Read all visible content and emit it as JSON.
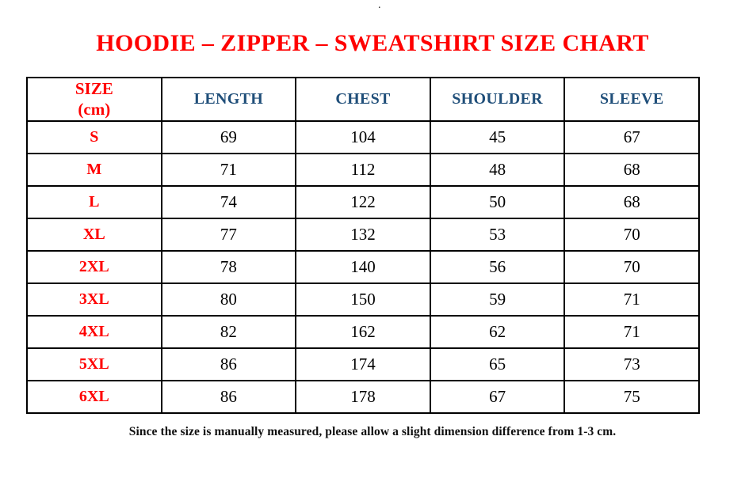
{
  "artifact": {
    "dot": "."
  },
  "colors": {
    "title_red": "#FF0000",
    "header_blue": "#1F4E79",
    "body_text": "#000000",
    "border": "#000000",
    "background": "#FFFFFF"
  },
  "header": {
    "size_line1": "SIZE",
    "size_line2": "(cm)",
    "columns": [
      "LENGTH",
      "CHEST",
      "SHOULDER",
      "SLEEVE"
    ]
  },
  "chart_data": {
    "type": "table",
    "title": "HOODIE – ZIPPER – SWEATSHIRT SIZE CHART",
    "columns": [
      "SIZE (cm)",
      "LENGTH",
      "CHEST",
      "SHOULDER",
      "SLEEVE"
    ],
    "rows": [
      {
        "size": "S",
        "length": 69,
        "chest": 104,
        "shoulder": 45,
        "sleeve": 67
      },
      {
        "size": "M",
        "length": 71,
        "chest": 112,
        "shoulder": 48,
        "sleeve": 68
      },
      {
        "size": "L",
        "length": 74,
        "chest": 122,
        "shoulder": 50,
        "sleeve": 68
      },
      {
        "size": "XL",
        "length": 77,
        "chest": 132,
        "shoulder": 53,
        "sleeve": 70
      },
      {
        "size": "2XL",
        "length": 78,
        "chest": 140,
        "shoulder": 56,
        "sleeve": 70
      },
      {
        "size": "3XL",
        "length": 80,
        "chest": 150,
        "shoulder": 59,
        "sleeve": 71
      },
      {
        "size": "4XL",
        "length": 82,
        "chest": 162,
        "shoulder": 62,
        "sleeve": 71
      },
      {
        "size": "5XL",
        "length": 86,
        "chest": 174,
        "shoulder": 65,
        "sleeve": 73
      },
      {
        "size": "6XL",
        "length": 86,
        "chest": 178,
        "shoulder": 67,
        "sleeve": 75
      }
    ],
    "footnote": "Since the size is manually measured, please allow a slight dimension difference from 1-3 cm.",
    "units": "cm"
  }
}
